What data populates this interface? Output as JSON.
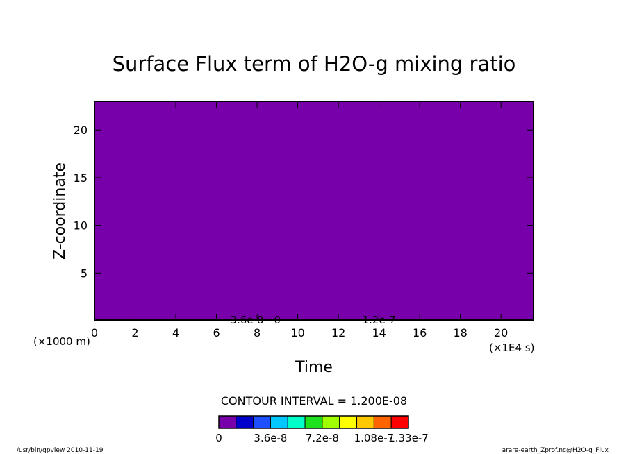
{
  "chart_data": {
    "type": "heatmap",
    "title": "Surface Flux term of H2O-g mixing ratio",
    "xlabel": "Time",
    "ylabel": "Z-coordinate",
    "x_scale_label": "(×1E4 s)",
    "y_scale_label": "(×1000 m)",
    "xlim": [
      0,
      21.6
    ],
    "ylim": [
      0,
      23
    ],
    "x_ticks": [
      0,
      2,
      4,
      6,
      8,
      10,
      12,
      14,
      16,
      18,
      20
    ],
    "y_ticks": [
      5,
      10,
      15,
      20
    ],
    "fill_color": "#7800aa",
    "field_value": 0,
    "surface_contour_labels": [
      {
        "text": "3.6e-8",
        "x": 7.5
      },
      {
        "text": "0",
        "x": 9.0
      },
      {
        "text": "1.2e-7",
        "x": 14.0
      }
    ],
    "contour_interval_text": "CONTOUR INTERVAL = 1.200E-08",
    "colorbar": {
      "colors": [
        "#7800aa",
        "#0000cd",
        "#1e50ff",
        "#00c8ff",
        "#00ffc8",
        "#1ee11e",
        "#a0ff00",
        "#ffff00",
        "#ffc800",
        "#ff6400",
        "#ff0000"
      ],
      "tick_labels": [
        "0",
        "3.6e-8",
        "7.2e-8",
        "1.08e-7",
        "1.33e-7"
      ]
    },
    "footer_left": "/usr/bin/gpview   2010-11-19",
    "footer_right": "arare-earth_Zprof.nc@H2O-g_Flux"
  }
}
